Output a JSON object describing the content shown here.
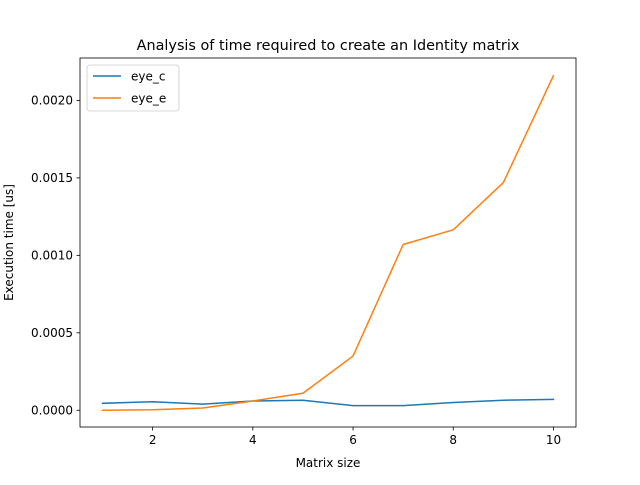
{
  "chart_data": {
    "type": "line",
    "title": "Analysis of time required to create an Identity matrix",
    "xlabel": "Matrix size",
    "ylabel": "Execution time [us]",
    "xlim": [
      0.55,
      10.45
    ],
    "ylim": [
      -0.000108,
      0.002274
    ],
    "x_ticks": [
      2,
      4,
      6,
      8,
      10
    ],
    "x_tick_labels": [
      "2",
      "4",
      "6",
      "8",
      "10"
    ],
    "y_ticks": [
      0.0,
      0.0005,
      0.001,
      0.0015,
      0.002
    ],
    "y_tick_labels": [
      "0.0000",
      "0.0005",
      "0.0010",
      "0.0015",
      "0.0020"
    ],
    "grid": false,
    "legend_position": "upper-left",
    "x": [
      1,
      2,
      3,
      4,
      5,
      6,
      7,
      8,
      9,
      10
    ],
    "series": [
      {
        "name": "eye_c",
        "color": "#1f77b4",
        "values": [
          4.5e-05,
          5.5e-05,
          4e-05,
          6e-05,
          6.5e-05,
          3e-05,
          3e-05,
          5e-05,
          6.5e-05,
          7e-05
        ]
      },
      {
        "name": "eye_e",
        "color": "#ff7f0e",
        "values": [
          0.0,
          3e-06,
          1.5e-05,
          6e-05,
          0.00011,
          0.00035,
          0.00107,
          0.001165,
          0.00147,
          0.00216
        ]
      }
    ]
  }
}
